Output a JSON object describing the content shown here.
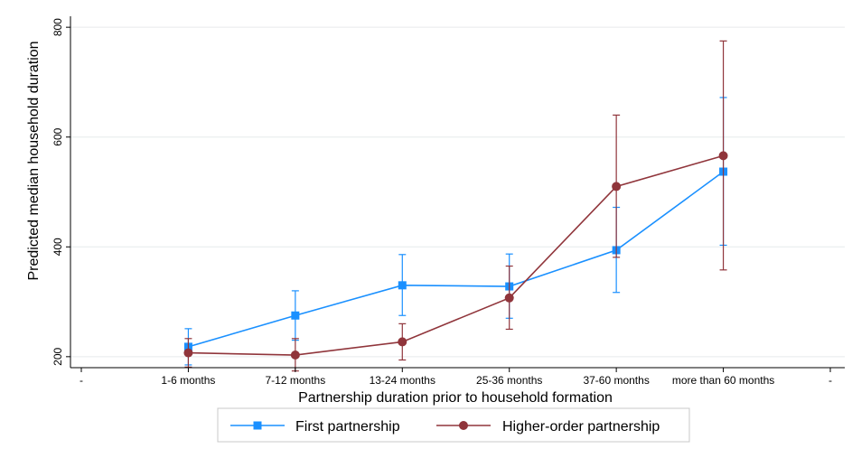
{
  "chart_data": {
    "type": "line",
    "xlabel": "Partnership duration prior to household formation",
    "ylabel": "Predicted median household duration",
    "x_ticks": [
      "-",
      "1-6 months",
      "7-12 months",
      "13-24 months",
      "25-36 months",
      "37-60 months",
      "more than 60 months",
      "-"
    ],
    "categories": [
      "1-6 months",
      "7-12 months",
      "13-24 months",
      "25-36 months",
      "37-60 months",
      "more than 60 months"
    ],
    "ylim": [
      180,
      820
    ],
    "y_ticks": [
      200,
      400,
      600,
      800
    ],
    "grid": true,
    "legend_position": "bottom",
    "series": [
      {
        "name": "First partnership",
        "color": "#1a90ff",
        "marker": "square",
        "values": [
          218,
          275,
          330,
          328,
          394,
          537
        ],
        "ci_low": [
          185,
          230,
          275,
          270,
          317,
          403
        ],
        "ci_high": [
          251,
          320,
          386,
          387,
          472,
          672
        ]
      },
      {
        "name": "Higher-order partnership",
        "color": "#90353b",
        "marker": "circle",
        "values": [
          207,
          203,
          227,
          307,
          510,
          566
        ],
        "ci_low": [
          181,
          174,
          194,
          250,
          381,
          358
        ],
        "ci_high": [
          233,
          233,
          260,
          365,
          640,
          775
        ]
      }
    ]
  }
}
